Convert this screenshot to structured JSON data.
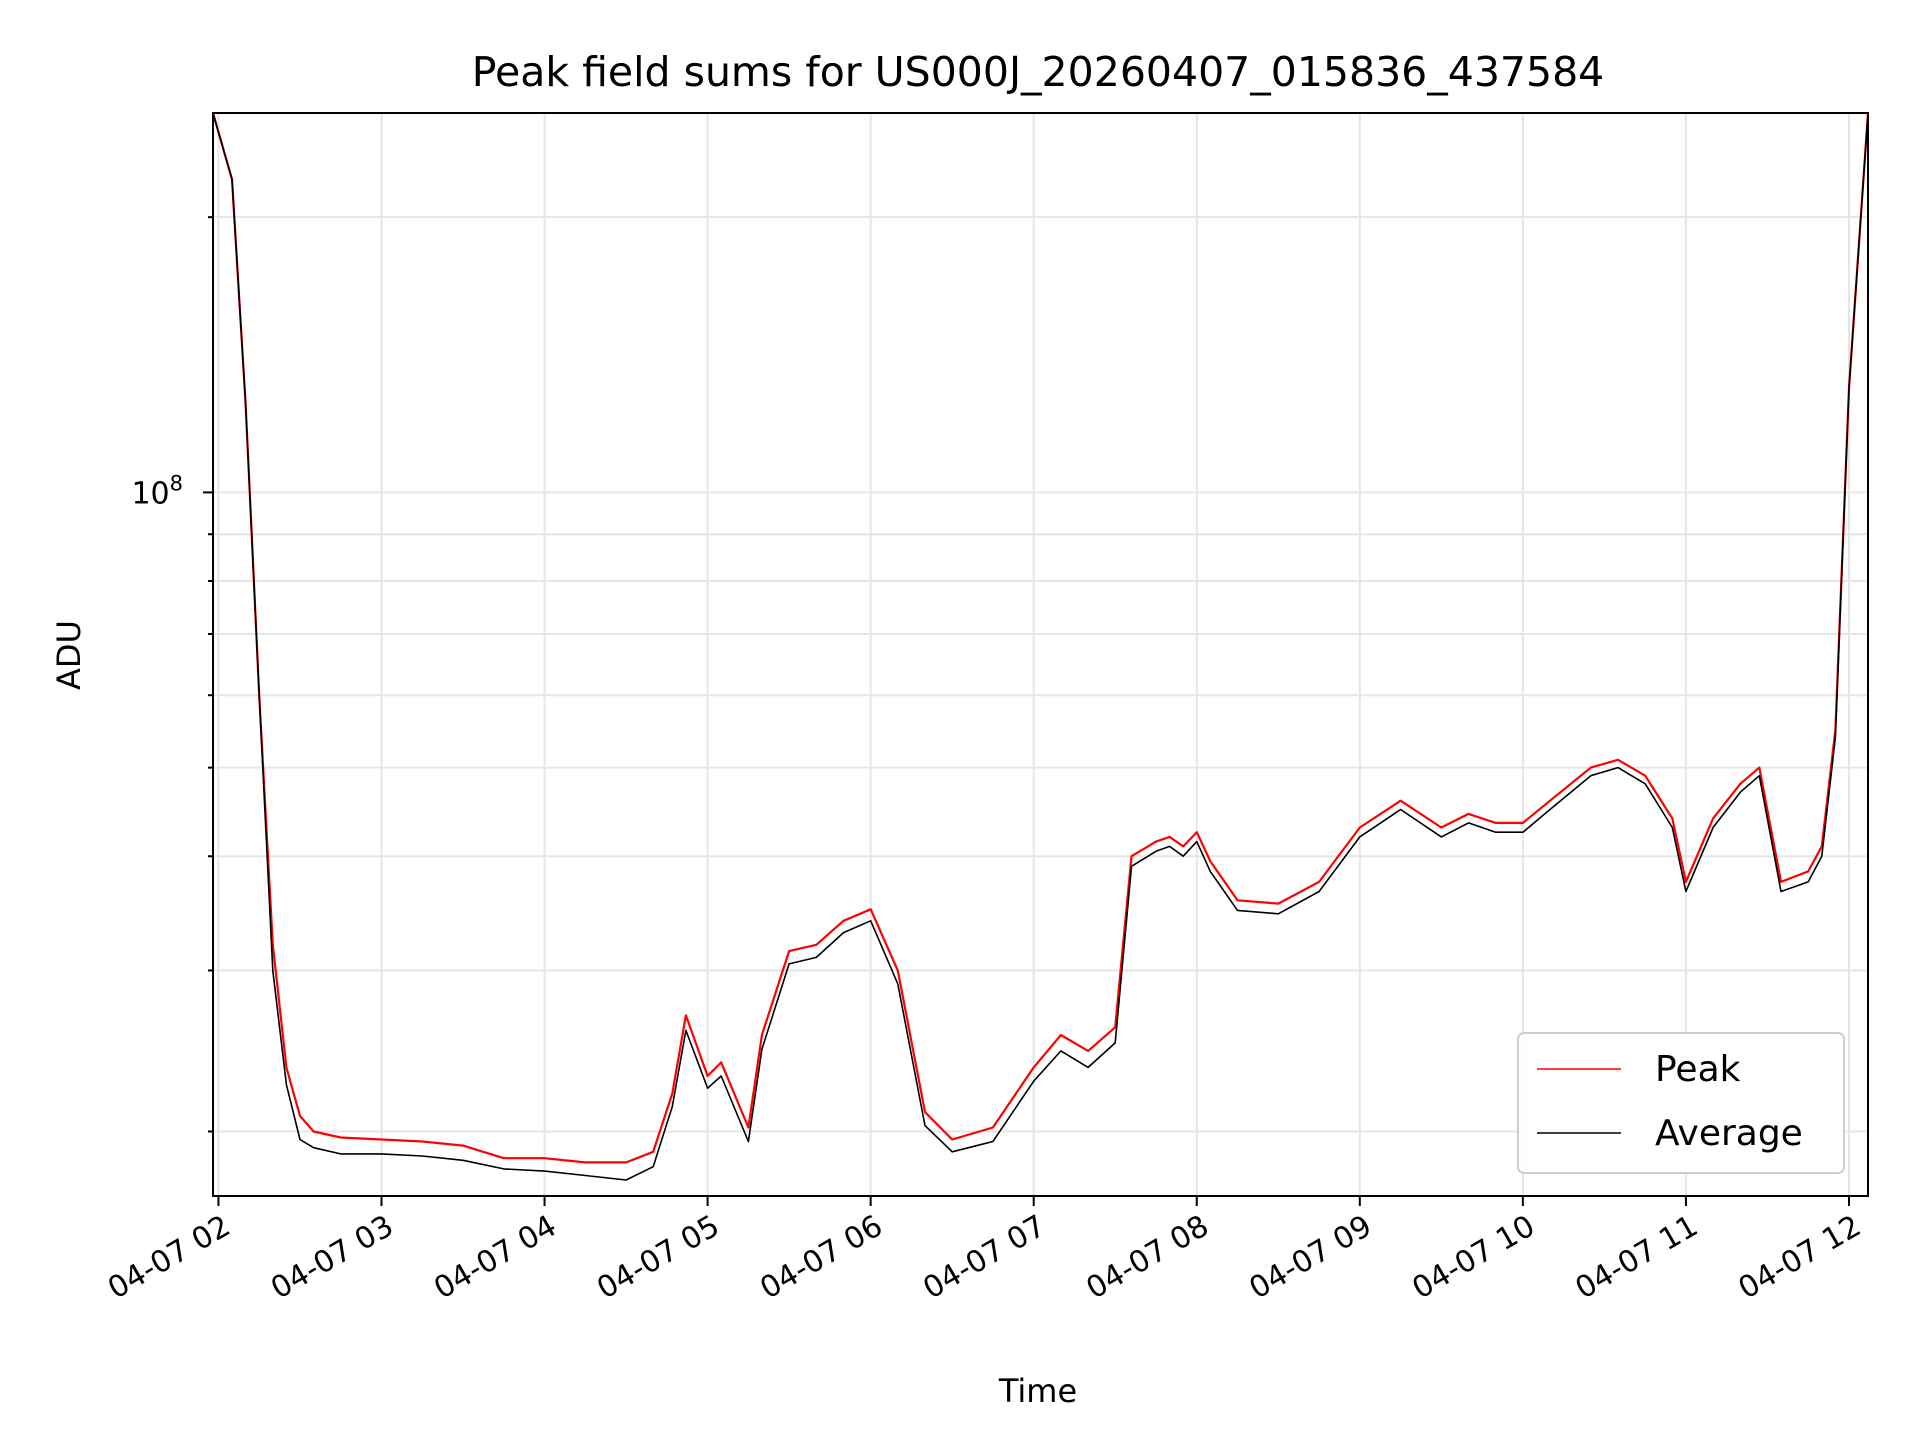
{
  "chart_data": {
    "type": "line",
    "title": "Peak field sums for US000J_20260407_015836_437584",
    "xlabel": "Time",
    "ylabel": "ADU",
    "xlim": [
      "2026-04-07 01:58",
      "2026-04-07 12:07"
    ],
    "ylim": [
      17000000,
      260000000
    ],
    "yscale": "log",
    "grid": true,
    "legend_position": "lower-right",
    "x_tick_labels": [
      "04-07 02",
      "04-07 03",
      "04-07 04",
      "04-07 05",
      "04-07 06",
      "04-07 07",
      "04-07 08",
      "04-07 09",
      "04-07 10",
      "04-07 11",
      "04-07 12"
    ],
    "x_ticks": [
      "2026-04-07 02:00",
      "2026-04-07 03:00",
      "2026-04-07 04:00",
      "2026-04-07 05:00",
      "2026-04-07 06:00",
      "2026-04-07 07:00",
      "2026-04-07 08:00",
      "2026-04-07 09:00",
      "2026-04-07 10:00",
      "2026-04-07 11:00",
      "2026-04-07 12:00"
    ],
    "y_major_tick": {
      "value": 100000000,
      "label_base": "10",
      "label_exp": "8"
    },
    "series": [
      {
        "name": "Peak",
        "color": "#ff0000",
        "x": [
          "2026-04-07 01:58",
          "2026-04-07 02:05",
          "2026-04-07 02:10",
          "2026-04-07 02:15",
          "2026-04-07 02:20",
          "2026-04-07 02:25",
          "2026-04-07 02:30",
          "2026-04-07 02:35",
          "2026-04-07 02:45",
          "2026-04-07 03:00",
          "2026-04-07 03:15",
          "2026-04-07 03:30",
          "2026-04-07 03:45",
          "2026-04-07 04:00",
          "2026-04-07 04:15",
          "2026-04-07 04:30",
          "2026-04-07 04:40",
          "2026-04-07 04:47",
          "2026-04-07 04:52",
          "2026-04-07 05:00",
          "2026-04-07 05:05",
          "2026-04-07 05:15",
          "2026-04-07 05:20",
          "2026-04-07 05:30",
          "2026-04-07 05:40",
          "2026-04-07 05:50",
          "2026-04-07 06:00",
          "2026-04-07 06:10",
          "2026-04-07 06:20",
          "2026-04-07 06:30",
          "2026-04-07 06:45",
          "2026-04-07 07:00",
          "2026-04-07 07:10",
          "2026-04-07 07:20",
          "2026-04-07 07:30",
          "2026-04-07 07:36",
          "2026-04-07 07:45",
          "2026-04-07 07:50",
          "2026-04-07 07:55",
          "2026-04-07 08:00",
          "2026-04-07 08:05",
          "2026-04-07 08:15",
          "2026-04-07 08:30",
          "2026-04-07 08:45",
          "2026-04-07 09:00",
          "2026-04-07 09:15",
          "2026-04-07 09:30",
          "2026-04-07 09:40",
          "2026-04-07 09:50",
          "2026-04-07 10:00",
          "2026-04-07 10:10",
          "2026-04-07 10:25",
          "2026-04-07 10:35",
          "2026-04-07 10:45",
          "2026-04-07 10:55",
          "2026-04-07 11:00",
          "2026-04-07 11:10",
          "2026-04-07 11:20",
          "2026-04-07 11:27",
          "2026-04-07 11:35",
          "2026-04-07 11:45",
          "2026-04-07 11:50",
          "2026-04-07 11:55",
          "2026-04-07 12:00",
          "2026-04-07 12:07"
        ],
        "y": [
          260000000,
          220000000,
          125000000,
          60000000,
          32000000,
          23500000,
          20800000,
          20000000,
          19700000,
          19600000,
          19500000,
          19300000,
          18700000,
          18700000,
          18500000,
          18500000,
          19000000,
          22000000,
          26800000,
          23000000,
          23800000,
          20200000,
          25500000,
          31500000,
          32000000,
          34000000,
          35000000,
          30000000,
          21000000,
          19600000,
          20200000,
          23500000,
          25500000,
          24500000,
          26000000,
          40000000,
          41500000,
          42000000,
          41000000,
          42500000,
          39500000,
          35800000,
          35500000,
          37500000,
          43000000,
          46000000,
          43000000,
          44500000,
          43500000,
          43500000,
          46000000,
          50000000,
          51000000,
          49000000,
          44000000,
          37500000,
          44000000,
          48000000,
          50000000,
          37500000,
          38500000,
          41000000,
          55000000,
          130000000,
          260000000
        ]
      },
      {
        "name": "Average",
        "color": "#000000",
        "x": [
          "2026-04-07 01:58",
          "2026-04-07 02:05",
          "2026-04-07 02:10",
          "2026-04-07 02:15",
          "2026-04-07 02:20",
          "2026-04-07 02:25",
          "2026-04-07 02:30",
          "2026-04-07 02:35",
          "2026-04-07 02:45",
          "2026-04-07 03:00",
          "2026-04-07 03:15",
          "2026-04-07 03:30",
          "2026-04-07 03:45",
          "2026-04-07 04:00",
          "2026-04-07 04:15",
          "2026-04-07 04:30",
          "2026-04-07 04:40",
          "2026-04-07 04:47",
          "2026-04-07 04:52",
          "2026-04-07 05:00",
          "2026-04-07 05:05",
          "2026-04-07 05:15",
          "2026-04-07 05:20",
          "2026-04-07 05:30",
          "2026-04-07 05:40",
          "2026-04-07 05:50",
          "2026-04-07 06:00",
          "2026-04-07 06:10",
          "2026-04-07 06:20",
          "2026-04-07 06:30",
          "2026-04-07 06:45",
          "2026-04-07 07:00",
          "2026-04-07 07:10",
          "2026-04-07 07:20",
          "2026-04-07 07:30",
          "2026-04-07 07:36",
          "2026-04-07 07:45",
          "2026-04-07 07:50",
          "2026-04-07 07:55",
          "2026-04-07 08:00",
          "2026-04-07 08:05",
          "2026-04-07 08:15",
          "2026-04-07 08:30",
          "2026-04-07 08:45",
          "2026-04-07 09:00",
          "2026-04-07 09:15",
          "2026-04-07 09:30",
          "2026-04-07 09:40",
          "2026-04-07 09:50",
          "2026-04-07 10:00",
          "2026-04-07 10:10",
          "2026-04-07 10:25",
          "2026-04-07 10:35",
          "2026-04-07 10:45",
          "2026-04-07 10:55",
          "2026-04-07 11:00",
          "2026-04-07 11:10",
          "2026-04-07 11:20",
          "2026-04-07 11:27",
          "2026-04-07 11:35",
          "2026-04-07 11:45",
          "2026-04-07 11:50",
          "2026-04-07 11:55",
          "2026-04-07 12:00",
          "2026-04-07 12:07"
        ],
        "y": [
          260000000,
          220000000,
          125000000,
          60000000,
          30000000,
          22500000,
          19600000,
          19200000,
          18900000,
          18900000,
          18800000,
          18600000,
          18200000,
          18100000,
          17900000,
          17700000,
          18300000,
          21300000,
          25800000,
          22300000,
          23000000,
          19500000,
          24600000,
          30500000,
          31000000,
          33000000,
          34000000,
          29000000,
          20300000,
          19000000,
          19500000,
          22700000,
          24500000,
          23500000,
          25000000,
          39000000,
          40500000,
          41000000,
          40000000,
          41500000,
          38500000,
          34900000,
          34600000,
          36600000,
          42000000,
          45000000,
          42000000,
          43500000,
          42500000,
          42500000,
          45000000,
          49000000,
          50000000,
          48000000,
          43000000,
          36600000,
          43000000,
          47000000,
          49000000,
          36600000,
          37500000,
          40000000,
          54000000,
          130000000,
          260000000
        ]
      }
    ]
  }
}
